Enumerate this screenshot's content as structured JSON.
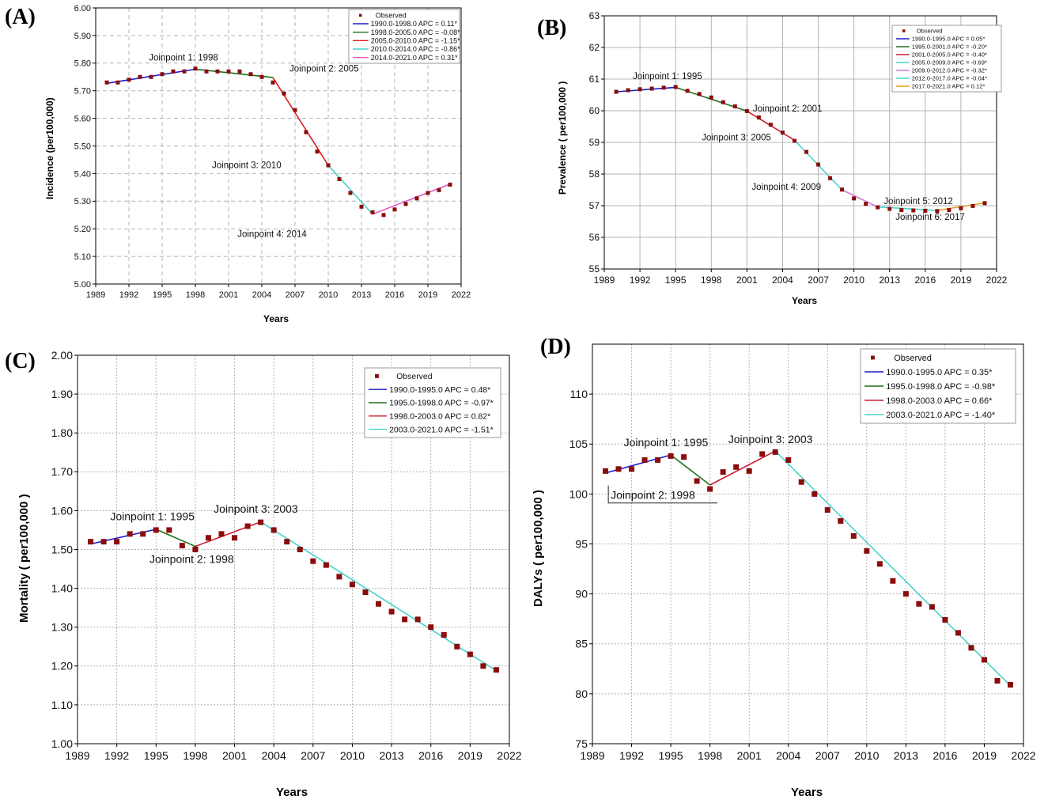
{
  "chart_data": [
    {
      "panel": "(A)",
      "type": "line",
      "ylabel": "Incidence (per100,000)",
      "xlabel": "Years",
      "xlim": [
        1989,
        2022
      ],
      "ylim": [
        5.0,
        6.0
      ],
      "xticks": [
        1989,
        1992,
        1995,
        1998,
        2001,
        2004,
        2007,
        2010,
        2013,
        2016,
        2019,
        2022
      ],
      "yticks": [
        "5.00",
        "5.10",
        "5.20",
        "5.30",
        "5.40",
        "5.50",
        "5.60",
        "5.70",
        "5.80",
        "5.90",
        "6.00"
      ],
      "grid": "dashed",
      "observed": {
        "x": [
          1990,
          1991,
          1992,
          1993,
          1994,
          1995,
          1996,
          1997,
          1998,
          1999,
          2000,
          2001,
          2002,
          2003,
          2004,
          2005,
          2006,
          2007,
          2008,
          2009,
          2010,
          2011,
          2012,
          2013,
          2014,
          2015,
          2016,
          2017,
          2018,
          2019,
          2020,
          2021
        ],
        "y": [
          5.73,
          5.73,
          5.74,
          5.75,
          5.75,
          5.76,
          5.77,
          5.77,
          5.78,
          5.77,
          5.77,
          5.77,
          5.77,
          5.76,
          5.75,
          5.73,
          5.69,
          5.63,
          5.55,
          5.48,
          5.43,
          5.38,
          5.33,
          5.28,
          5.26,
          5.25,
          5.27,
          5.29,
          5.31,
          5.33,
          5.34,
          5.36
        ]
      },
      "legend": [
        "Observed",
        "1990.0-1998.0 APC = 0.11*",
        "1998.0-2005.0 APC = -0.08*",
        "2005.0-2010.0 APC = -1.15*",
        "2010.0-2014.0 APC = -0.86*",
        "2014.0-2021.0 APC = 0.31*"
      ],
      "segments": [
        {
          "x": [
            1990,
            1998
          ],
          "y": [
            5.727,
            5.778
          ],
          "color": "#1c1cc8"
        },
        {
          "x": [
            1998,
            2005
          ],
          "y": [
            5.778,
            5.748
          ],
          "color": "#1e6e1e"
        },
        {
          "x": [
            2005,
            2010
          ],
          "y": [
            5.748,
            5.43
          ],
          "color": "#e01b1b"
        },
        {
          "x": [
            2010,
            2014
          ],
          "y": [
            5.43,
            5.253
          ],
          "color": "#46d2cc"
        },
        {
          "x": [
            2014,
            2021
          ],
          "y": [
            5.253,
            5.362
          ],
          "color": "#e256c8"
        }
      ],
      "annotations": [
        {
          "text": "Joinpoint 1:  1998",
          "x": 1993.8,
          "y": 5.81
        },
        {
          "text": "Joinpoint 2:  2005",
          "x": 2006.5,
          "y": 5.77
        },
        {
          "text": "Joinpoint 3:  2010",
          "x": 1999.5,
          "y": 5.42
        },
        {
          "text": "Joinpoint 4:  2014",
          "x": 2001.8,
          "y": 5.17
        }
      ]
    },
    {
      "panel": "(B)",
      "type": "line",
      "ylabel": "Prevalence ( per100,000 )",
      "xlabel": "Years",
      "xlim": [
        1989,
        2022
      ],
      "ylim": [
        55,
        63
      ],
      "xticks": [
        1989,
        1992,
        1995,
        1998,
        2001,
        2004,
        2007,
        2010,
        2013,
        2016,
        2019,
        2022
      ],
      "yticks": [
        "55",
        "56",
        "57",
        "58",
        "59",
        "60",
        "61",
        "62",
        "63"
      ],
      "grid": "solid",
      "observed": {
        "x": [
          1990,
          1991,
          1992,
          1993,
          1994,
          1995,
          1996,
          1997,
          1998,
          1999,
          2000,
          2001,
          2002,
          2003,
          2004,
          2005,
          2006,
          2007,
          2008,
          2009,
          2010,
          2011,
          2012,
          2013,
          2014,
          2015,
          2016,
          2017,
          2018,
          2019,
          2020,
          2021
        ],
        "y": [
          60.6,
          60.65,
          60.68,
          60.7,
          60.73,
          60.75,
          60.63,
          60.53,
          60.42,
          60.27,
          60.14,
          59.99,
          59.79,
          59.56,
          59.31,
          59.05,
          58.7,
          58.3,
          57.87,
          57.51,
          57.23,
          57.06,
          56.95,
          56.9,
          56.86,
          56.85,
          56.84,
          56.83,
          56.86,
          56.92,
          56.99,
          57.08
        ]
      },
      "legend": [
        "Observed",
        "1990.0-1995.0 APC = 0.05*",
        "1995.0-2001.0 APC = -0.20*",
        "2001.0-2005.0 APC = -0.40*",
        "2005.0-2009.0 APC = -0.69*",
        "2009.0-2012.0 APC = -0.32*",
        "2012.0-2017.0 APC = -0.04*",
        "2017.0-2021.0 APC = 0.12*"
      ],
      "segments": [
        {
          "x": [
            1990,
            1995
          ],
          "y": [
            60.6,
            60.74
          ],
          "color": "#1c1cc8"
        },
        {
          "x": [
            1995,
            2001
          ],
          "y": [
            60.74,
            59.99
          ],
          "color": "#1e6e1e"
        },
        {
          "x": [
            2001,
            2005
          ],
          "y": [
            59.99,
            59.07
          ],
          "color": "#c81e32"
        },
        {
          "x": [
            2005,
            2009
          ],
          "y": [
            59.07,
            57.5
          ],
          "color": "#46d2cc"
        },
        {
          "x": [
            2009,
            2012
          ],
          "y": [
            57.5,
            56.96
          ],
          "color": "#d27ad2"
        },
        {
          "x": [
            2012,
            2017
          ],
          "y": [
            56.96,
            56.85
          ],
          "color": "#46d2cc"
        },
        {
          "x": [
            2017,
            2021
          ],
          "y": [
            56.85,
            57.09
          ],
          "color": "#e6a01e"
        }
      ],
      "annotations": [
        {
          "text": "Joinpoint 1:  1995",
          "x": 1991.4,
          "y": 61.0
        },
        {
          "text": "Joinpoint 2:  2001",
          "x": 2001.5,
          "y": 59.98
        },
        {
          "text": "Joinpoint 3:  2005",
          "x": 1997.2,
          "y": 59.06
        },
        {
          "text": "Joinpoint 4:  2009",
          "x": 2001.4,
          "y": 57.5
        },
        {
          "text": "Joinpoint 5:  2012",
          "x": 2012.5,
          "y": 57.05
        },
        {
          "text": "Joinpoint 6:  2017",
          "x": 2013.5,
          "y": 56.55
        }
      ]
    },
    {
      "panel": "(C)",
      "type": "line",
      "ylabel": "Mortality ( per100,000 )",
      "xlabel": "Years",
      "xlim": [
        1989,
        2022
      ],
      "ylim": [
        1.0,
        2.0
      ],
      "xticks": [
        1989,
        1992,
        1995,
        1998,
        2001,
        2004,
        2007,
        2010,
        2013,
        2016,
        2019,
        2022
      ],
      "yticks": [
        "1.00",
        "1.10",
        "1.20",
        "1.30",
        "1.40",
        "1.50",
        "1.60",
        "1.70",
        "1.80",
        "1.90",
        "2.00"
      ],
      "grid": "dotted",
      "observed": {
        "x": [
          1990,
          1991,
          1992,
          1993,
          1994,
          1995,
          1996,
          1997,
          1998,
          1999,
          2000,
          2001,
          2002,
          2003,
          2004,
          2005,
          2006,
          2007,
          2008,
          2009,
          2010,
          2011,
          2012,
          2013,
          2014,
          2015,
          2016,
          2017,
          2018,
          2019,
          2020,
          2021
        ],
        "y": [
          1.52,
          1.52,
          1.52,
          1.54,
          1.54,
          1.55,
          1.55,
          1.51,
          1.5,
          1.53,
          1.54,
          1.53,
          1.56,
          1.57,
          1.55,
          1.52,
          1.5,
          1.47,
          1.46,
          1.43,
          1.41,
          1.39,
          1.36,
          1.34,
          1.32,
          1.32,
          1.3,
          1.28,
          1.25,
          1.23,
          1.2,
          1.19
        ]
      },
      "legend": [
        "Observed",
        "1990.0-1995.0 APC = 0.48*",
        "1995.0-1998.0 APC = -0.97*",
        "1998.0-2003.0 APC = 0.82*",
        "2003.0-2021.0 APC = -1.51*"
      ],
      "segments": [
        {
          "x": [
            1990,
            1995
          ],
          "y": [
            1.514,
            1.552
          ],
          "color": "#1c1cc8"
        },
        {
          "x": [
            1995,
            1998
          ],
          "y": [
            1.552,
            1.508
          ],
          "color": "#1e6e1e"
        },
        {
          "x": [
            1998,
            2003
          ],
          "y": [
            1.508,
            1.571
          ],
          "color": "#c81e32"
        },
        {
          "x": [
            2003,
            2021
          ],
          "y": [
            1.571,
            1.188
          ],
          "color": "#46d2cc"
        }
      ],
      "annotations": [
        {
          "text": "Joinpoint 1:  1995",
          "x": 1991.5,
          "y": 1.575
        },
        {
          "text": "Joinpoint 2:  1998",
          "x": 1994.5,
          "y": 1.465
        },
        {
          "text": "Joinpoint 3:  2003",
          "x": 1999.4,
          "y": 1.595
        }
      ]
    },
    {
      "panel": "(D)",
      "type": "line",
      "ylabel": "DALYs ( per100,000 )",
      "xlabel": "Years",
      "xlim": [
        1989,
        2022
      ],
      "ylim": [
        75,
        115
      ],
      "xticks": [
        1989,
        1992,
        1995,
        1998,
        2001,
        2004,
        2007,
        2010,
        2013,
        2016,
        2019,
        2022
      ],
      "yticks": [
        "75",
        "80",
        "85",
        "90",
        "95",
        "100",
        "105",
        "110"
      ],
      "grid": "dotted",
      "observed": {
        "x": [
          1990,
          1991,
          1992,
          1993,
          1994,
          1995,
          1996,
          1997,
          1998,
          1999,
          2000,
          2001,
          2002,
          2003,
          2004,
          2005,
          2006,
          2007,
          2008,
          2009,
          2010,
          2011,
          2012,
          2013,
          2014,
          2015,
          2016,
          2017,
          2018,
          2019,
          2020,
          2021
        ],
        "y": [
          102.3,
          102.5,
          102.5,
          103.4,
          103.4,
          103.8,
          103.7,
          101.3,
          100.5,
          102.2,
          102.7,
          102.3,
          104.0,
          104.2,
          103.4,
          101.2,
          100.0,
          98.4,
          97.3,
          95.8,
          94.3,
          93.0,
          91.3,
          90.0,
          89.0,
          88.7,
          87.4,
          86.1,
          84.6,
          83.4,
          81.3,
          80.9
        ]
      },
      "legend": [
        "Observed",
        "1990.0-1995.0 APC = 0.35*",
        "1995.0-1998.0 APC = -0.98*",
        "1998.0-2003.0 APC = 0.66*",
        "2003.0-2021.0 APC = -1.40*"
      ],
      "segments": [
        {
          "x": [
            1990,
            1995
          ],
          "y": [
            102.1,
            103.9
          ],
          "color": "#1c1cc8"
        },
        {
          "x": [
            1995,
            1998
          ],
          "y": [
            103.9,
            100.9
          ],
          "color": "#1e6e1e"
        },
        {
          "x": [
            1998,
            2003
          ],
          "y": [
            100.9,
            104.3
          ],
          "color": "#c81e32"
        },
        {
          "x": [
            2003,
            2021
          ],
          "y": [
            104.3,
            80.8
          ],
          "color": "#46d2cc"
        }
      ],
      "annotations": [
        {
          "text": "Joinpoint 1:  1995",
          "x": 1991.4,
          "y": 104.8,
          "boxed": false
        },
        {
          "text": "Joinpoint 2:  1998",
          "x": 1990.4,
          "y": 99.5,
          "boxed": true
        },
        {
          "text": "Joinpoint 3:  2003",
          "x": 1999.4,
          "y": 105.1,
          "boxed": false
        }
      ]
    }
  ],
  "colors": {
    "observed": "#8b0c0c",
    "axis": "#000000",
    "grid": "#b4b4b4"
  }
}
